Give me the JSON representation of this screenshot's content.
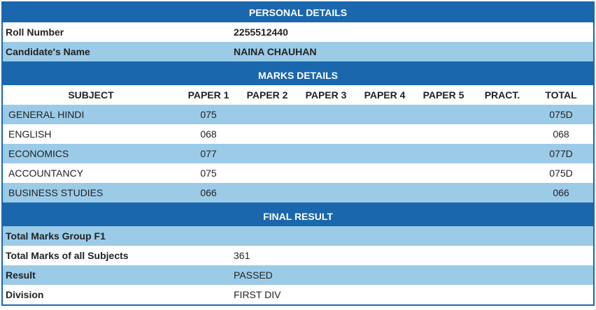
{
  "personal_details": {
    "title": "PERSONAL DETAILS",
    "rows": [
      {
        "label": "Roll Number",
        "value": "2255512440"
      },
      {
        "label": "Candidate's Name",
        "value": "NAINA CHAUHAN"
      }
    ]
  },
  "marks_details": {
    "title": "MARKS DETAILS",
    "columns": [
      "SUBJECT",
      "PAPER 1",
      "PAPER 2",
      "PAPER 3",
      "PAPER 4",
      "PAPER 5",
      "PRACT.",
      "TOTAL"
    ],
    "rows": [
      {
        "subject": "GENERAL HINDI",
        "paper_1": "075",
        "total": "075D"
      },
      {
        "subject": "ENGLISH",
        "paper_1": "068",
        "total": "068"
      },
      {
        "subject": "ECONOMICS",
        "paper_1": "077",
        "total": "077D"
      },
      {
        "subject": "ACCOUNTANCY",
        "paper_1": "075",
        "total": "075D"
      },
      {
        "subject": "BUSINESS STUDIES",
        "paper_1": "066",
        "total": "066"
      }
    ]
  },
  "final_result": {
    "title": "FINAL RESULT",
    "rows": [
      {
        "label": "Total Marks Group F1"
      },
      {
        "label": "Total Marks of all Subjects",
        "value": "361"
      },
      {
        "label": "Result",
        "value": "PASSED"
      },
      {
        "label": "Division",
        "value": "FIRST DIV"
      }
    ]
  }
}
